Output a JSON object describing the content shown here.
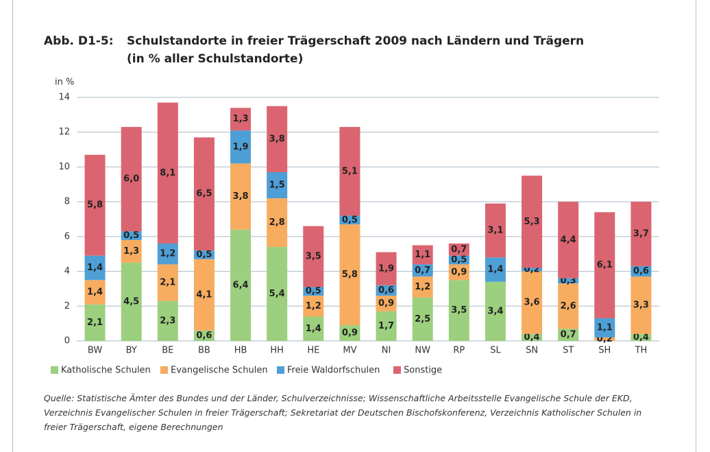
{
  "chart_data": {
    "type": "stacked_bar",
    "figure_label": "Abb. D1-5:",
    "title": "Schulstandorte in freier Trägerschaft 2009 nach Ländern und Trägern",
    "subtitle": "(in % aller Schulstandorte)",
    "y_label": "in %",
    "categories": [
      "BW",
      "BY",
      "BE",
      "BB",
      "HB",
      "HH",
      "HE",
      "MV",
      "NI",
      "NW",
      "RP",
      "SL",
      "SN",
      "ST",
      "SH",
      "TH"
    ],
    "series": [
      {
        "name": "Katholische Schulen",
        "color": "#9ccf7e",
        "values": [
          2.1,
          4.5,
          2.3,
          0.6,
          6.4,
          5.4,
          1.4,
          0.9,
          1.7,
          2.5,
          3.5,
          3.4,
          0.4,
          0.7,
          null,
          0.4
        ],
        "value_labels": [
          "2,1",
          "4,5",
          "2,3",
          "0,6",
          "6,4",
          "5,4",
          "1,4",
          "0,9",
          "1,7",
          "2,5",
          "3,5",
          "3,4",
          "0,4",
          "0,7",
          null,
          "0,4"
        ]
      },
      {
        "name": "Evangelische Schulen",
        "color": "#f7ac60",
        "values": [
          1.4,
          1.3,
          2.1,
          4.1,
          3.8,
          2.8,
          1.2,
          5.8,
          0.9,
          1.2,
          0.9,
          null,
          3.6,
          2.6,
          0.2,
          3.3
        ],
        "value_labels": [
          "1,4",
          "1,3",
          "2,1",
          "4,1",
          "3,8",
          "2,8",
          "1,2",
          "5,8",
          "0,9",
          "1,2",
          "0,9",
          null,
          "3,6",
          "2,6",
          "0,2",
          "3,3"
        ]
      },
      {
        "name": "Freie Waldorfschulen",
        "color": "#4e9fd6",
        "values": [
          1.4,
          0.5,
          1.2,
          0.5,
          1.9,
          1.5,
          0.5,
          0.5,
          0.6,
          0.7,
          0.5,
          1.4,
          0.2,
          0.3,
          1.1,
          0.6
        ],
        "value_labels": [
          "1,4",
          "0,5",
          "1,2",
          "0,5",
          "1,9",
          "1,5",
          "0,5",
          "0,5",
          "0,6",
          "0,7",
          "0,5",
          "1,4",
          "0,2",
          "0,3",
          "1,1",
          "0,6"
        ]
      },
      {
        "name": "Sonstige",
        "color": "#da6570",
        "values": [
          5.8,
          6.0,
          8.1,
          6.5,
          1.3,
          3.8,
          3.5,
          5.1,
          1.9,
          1.1,
          0.7,
          3.1,
          5.3,
          4.4,
          6.1,
          3.7
        ],
        "value_labels": [
          "5,8",
          "6,0",
          "8,1",
          "6,5",
          "1,3",
          "3,8",
          "3,5",
          "5,1",
          "1,9",
          "1,1",
          "0,7",
          "3,1",
          "5,3",
          "4,4",
          "6,1",
          "3,7"
        ]
      }
    ],
    "ylim": [
      0,
      14
    ],
    "yticks": [
      0,
      2,
      4,
      6,
      8,
      10,
      12,
      14
    ],
    "grid": true,
    "source": "Quelle: Statistische Ämter des Bundes und der Länder, Schulverzeichnisse; Wissenschaftliche Arbeitsstelle Evangelische Schule der EKD, Verzeichnis Evangelischer Schulen in freier Trägerschaft; Sekretariat der Deutschen Bischofskonferenz, Verzeichnis Katholischer Schulen in freier Trägerschaft, eigene Berechnungen"
  }
}
